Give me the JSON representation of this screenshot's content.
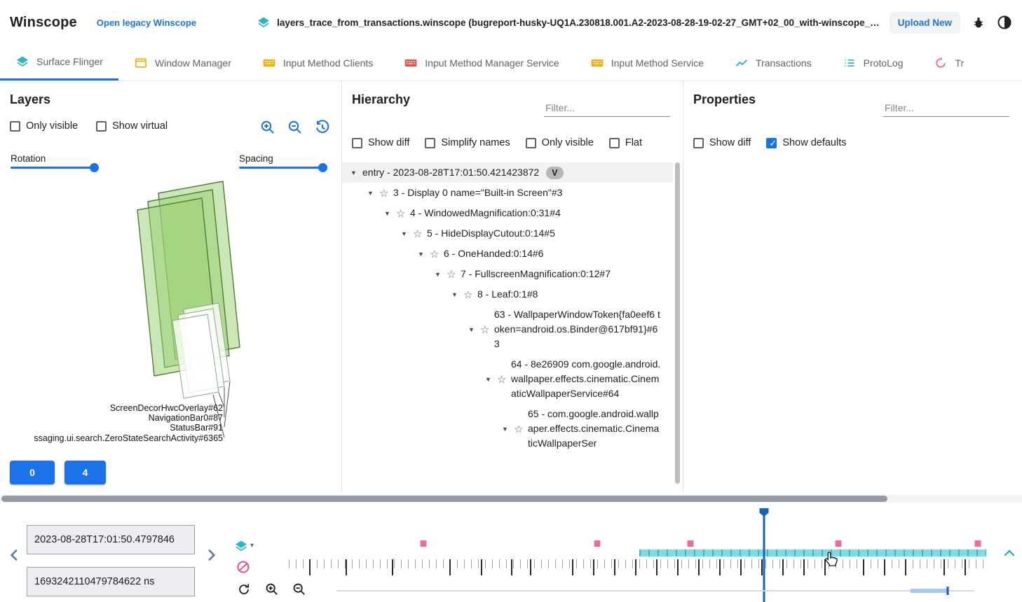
{
  "colors": {
    "accent": "#1a73e8",
    "teal": "#2bb6c4",
    "amber": "#f9ab00",
    "red_orange": "#e25142",
    "pink_marker": "#ee6c9a",
    "sf_segment": "#7edce6",
    "cursor_blue": "#1565c0",
    "layer_fill": "#97d070",
    "layer_stroke": "#4e7e34"
  },
  "topbar": {
    "app_title": "Winscope",
    "legacy_link": "Open legacy Winscope",
    "trace_file": "layers_trace_from_transactions.winscope (bugreport-husky-UQ1A.230818.001.A2-2023-08-28-19-02-27_GMT+02_00_with-winscope_REDACTED.zip)",
    "upload_button": "Upload New"
  },
  "tabs": [
    {
      "label": "Surface Flinger",
      "active": true
    },
    {
      "label": "Window Manager",
      "active": false
    },
    {
      "label": "Input Method Clients",
      "active": false
    },
    {
      "label": "Input Method Manager Service",
      "active": false
    },
    {
      "label": "Input Method Service",
      "active": false
    },
    {
      "label": "Transactions",
      "active": false
    },
    {
      "label": "ProtoLog",
      "active": false
    },
    {
      "label": "Tr",
      "active": false
    }
  ],
  "layers_panel": {
    "title": "Layers",
    "options": [
      {
        "label": "Only visible",
        "checked": false
      },
      {
        "label": "Show virtual",
        "checked": false
      }
    ],
    "rotation_label": "Rotation",
    "spacing_label": "Spacing",
    "layer_labels": [
      "ScreenDecorHwcOverlay#62",
      "NavigationBar0#87",
      "StatusBar#91",
      "ssaging.ui.search.ZeroStateSearchActivity#6365"
    ],
    "display_buttons": [
      "0",
      "4"
    ]
  },
  "hierarchy_panel": {
    "title": "Hierarchy",
    "filter_placeholder": "Filter...",
    "options": [
      {
        "label": "Show diff",
        "checked": false
      },
      {
        "label": "Simplify names",
        "checked": false
      },
      {
        "label": "Only visible",
        "checked": false
      },
      {
        "label": "Flat",
        "checked": false
      }
    ],
    "tree": [
      {
        "label": "entry - 2023-08-28T17:01:50.421423872",
        "badge": "V"
      },
      {
        "label": "3 - Display 0 name=\"Built-in Screen\"#3"
      },
      {
        "label": "4 - WindowedMagnification:0:31#4"
      },
      {
        "label": "5 - HideDisplayCutout:0:14#5"
      },
      {
        "label": "6 - OneHanded:0:14#6"
      },
      {
        "label": "7 - FullscreenMagnification:0:12#7"
      },
      {
        "label": "8 - Leaf:0:1#8"
      },
      {
        "label": "63 - WallpaperWindowToken{fa0eef6 token=android.os.Binder@617bf91}#63"
      },
      {
        "label": "64 - 8e26909 com.google.android.wallpaper.effects.cinematic.CinematicWallpaperService#64"
      },
      {
        "label": "65 - com.google.android.wallpaper.effects.cinematic.CinematicWallpaperSer"
      }
    ]
  },
  "properties_panel": {
    "title": "Properties",
    "filter_placeholder": "Filter...",
    "options": [
      {
        "label": "Show diff",
        "checked": false
      },
      {
        "label": "Show defaults",
        "checked": true
      }
    ]
  },
  "timeline": {
    "timestamp_human": "2023-08-28T17:01:50.4797846",
    "timestamp_ns": "1693242110479784622 ns",
    "cursor": 0.678,
    "event_markers": [
      0.192,
      0.44,
      0.573,
      0.784,
      0.983
    ],
    "segments": [
      {
        "start": 0.5,
        "end": 0.995
      }
    ],
    "major_ticks": [
      0.03,
      0.082,
      0.148,
      0.23,
      0.275,
      0.318,
      0.345,
      0.405,
      0.435,
      0.465,
      0.495,
      0.525,
      0.555,
      0.585,
      0.615,
      0.645,
      0.675,
      0.705,
      0.735,
      0.765,
      0.82,
      0.85,
      0.88,
      0.935,
      0.965
    ],
    "minimap": {
      "start": 0.9,
      "end": 0.958
    }
  }
}
